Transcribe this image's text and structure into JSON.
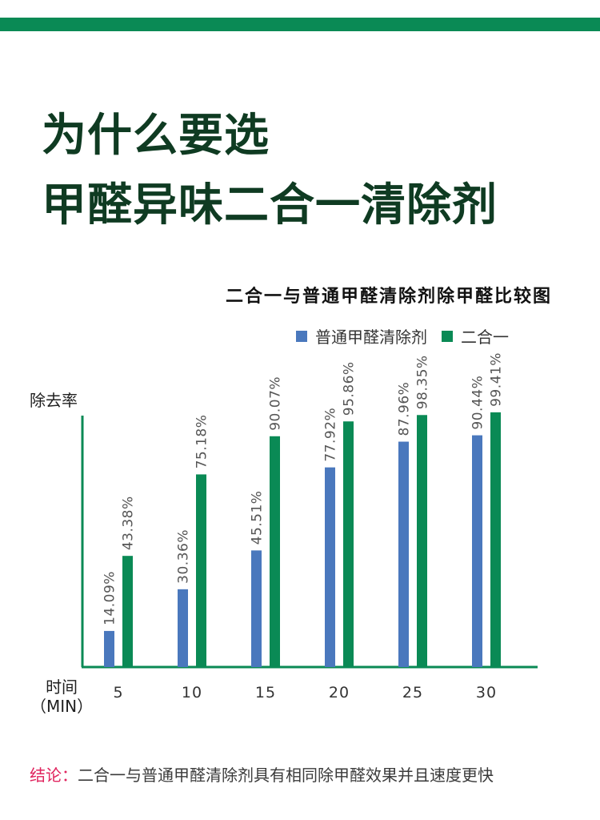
{
  "colors": {
    "accent": "#0a8a55",
    "headline": "#0f3b22",
    "series_blue": "#4a78bd",
    "series_green": "#0a8a55",
    "conclusion_label": "#e0245e"
  },
  "header": {
    "line1": "为什么要选",
    "line2": "甲醛异味二合一清除剂"
  },
  "chart_data": {
    "type": "bar",
    "title": "二合一与普通甲醛清除剂除甲醛比较图",
    "ylabel": "除去率",
    "xlabel_line1": "时间",
    "xlabel_line2": "（MIN）",
    "categories": [
      "5",
      "10",
      "15",
      "20",
      "25",
      "30"
    ],
    "series": [
      {
        "name": "普通甲醛清除剂",
        "values": [
          14.09,
          30.36,
          45.51,
          77.92,
          87.96,
          90.44
        ],
        "labels": [
          "14.09%",
          "30.36%",
          "45.51%",
          "77.92%",
          "87.96%",
          "90.44%"
        ]
      },
      {
        "name": "二合一",
        "values": [
          43.38,
          75.18,
          90.07,
          95.86,
          98.35,
          99.41
        ],
        "labels": [
          "43.38%",
          "75.18%",
          "90.07%",
          "95.86%",
          "98.35%",
          "99.41%"
        ]
      }
    ],
    "ylim": [
      0,
      145
    ],
    "grid": false,
    "legend": "top-right"
  },
  "conclusion": {
    "label": "结论：",
    "text": "二合一与普通甲醛清除剂具有相同除甲醛效果并且速度更快"
  }
}
